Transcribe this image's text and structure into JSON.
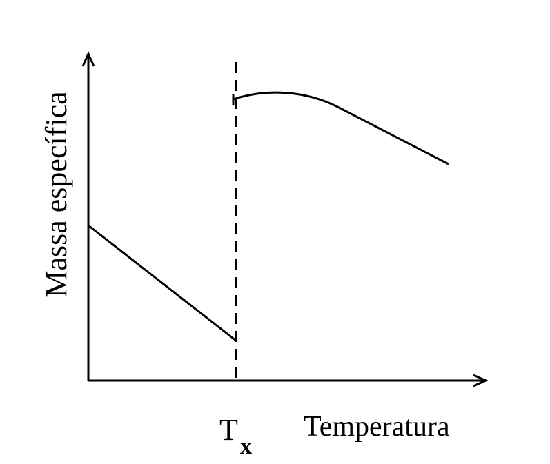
{
  "y_axis_label": "Massa específica",
  "x_marker": {
    "label": "T",
    "subscript": "x"
  },
  "x_axis_label": "Temperatura"
}
